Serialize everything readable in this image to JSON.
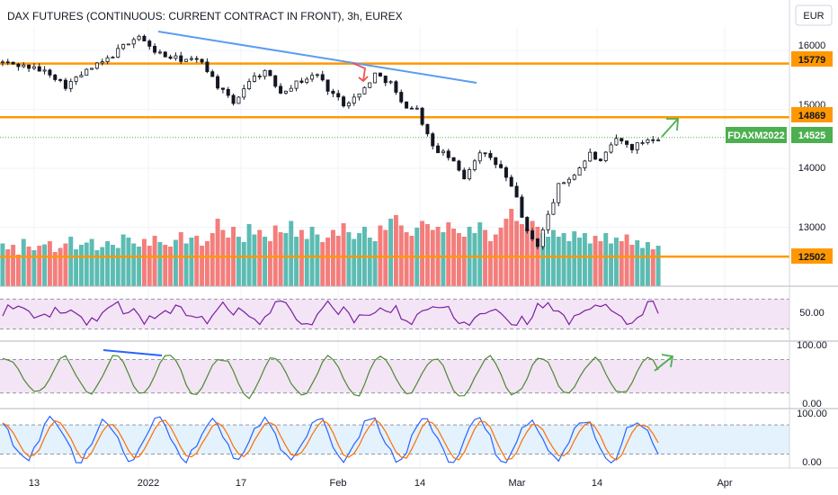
{
  "chart_data": {
    "type": "candlestick",
    "title": "DAX FUTURES (CONTINUOUS: CURRENT CONTRACT IN FRONT), 3h, EUREX",
    "currency": "EUR",
    "symbol": "FDAXM2022",
    "last_price": "14525",
    "colors": {
      "up": "#26a69a",
      "down": "#ef5350",
      "candle": "#131722",
      "level": "#ff9800",
      "trend": "#5b9cf2",
      "rsi": "#7b1fa2",
      "osc": "#4a8a2e",
      "stoch_k": "#2962ff",
      "stoch_d": "#ff6d00",
      "rsi_band": "#f3e5f5",
      "stoch_band": "#e3f2fd"
    },
    "y_ticks": [
      "16000",
      "15000",
      "14000",
      "13000"
    ],
    "ylim": [
      12000,
      16400
    ],
    "levels": [
      {
        "label": "15779",
        "value": 15779
      },
      {
        "label": "14869",
        "value": 14869
      },
      {
        "label": "12502",
        "value": 12502
      }
    ],
    "x_tick_labels": [
      "13",
      "2022",
      "17",
      "Feb",
      "14",
      "Mar",
      "14",
      "Apr"
    ],
    "price_path": [
      [
        0,
        15800
      ],
      [
        5,
        15720
      ],
      [
        9,
        15620
      ],
      [
        12,
        15400
      ],
      [
        16,
        15650
      ],
      [
        20,
        15850
      ],
      [
        24,
        16150
      ],
      [
        26,
        16250
      ],
      [
        28,
        16050
      ],
      [
        31,
        15900
      ],
      [
        34,
        15850
      ],
      [
        38,
        15820
      ],
      [
        41,
        15400
      ],
      [
        44,
        15100
      ],
      [
        47,
        15500
      ],
      [
        50,
        15650
      ],
      [
        53,
        15300
      ],
      [
        56,
        15450
      ],
      [
        60,
        15600
      ],
      [
        62,
        15350
      ],
      [
        65,
        15100
      ],
      [
        68,
        15250
      ],
      [
        71,
        15600
      ],
      [
        74,
        15450
      ],
      [
        76,
        15100
      ],
      [
        79,
        15000
      ],
      [
        82,
        14350
      ],
      [
        85,
        14200
      ],
      [
        88,
        13850
      ],
      [
        91,
        14300
      ],
      [
        95,
        14000
      ],
      [
        98,
        13500
      ],
      [
        100,
        12900
      ],
      [
        102,
        12700
      ],
      [
        104,
        13200
      ],
      [
        106,
        13700
      ],
      [
        109,
        13900
      ],
      [
        112,
        14250
      ],
      [
        114,
        14100
      ],
      [
        117,
        14500
      ],
      [
        120,
        14350
      ],
      [
        123,
        14500
      ],
      [
        125,
        14525
      ]
    ],
    "volume": [
      95,
      82,
      92,
      70,
      105,
      88,
      80,
      90,
      93,
      100,
      76,
      85,
      95,
      110,
      82,
      92,
      97,
      105,
      80,
      87,
      100,
      92,
      85,
      115,
      108,
      95,
      88,
      105,
      90,
      112,
      98,
      92,
      88,
      103,
      120,
      95,
      108,
      112,
      90,
      100,
      118,
      150,
      125,
      108,
      132,
      110,
      98,
      138,
      115,
      125,
      110,
      100,
      135,
      120,
      118,
      145,
      110,
      125,
      105,
      132,
      115,
      98,
      108,
      125,
      112,
      140,
      120,
      105,
      118,
      132,
      108,
      100,
      135,
      125,
      150,
      158,
      135,
      120,
      112,
      130,
      145,
      138,
      125,
      132,
      120,
      142,
      128,
      118,
      110,
      132,
      118,
      142,
      125,
      100,
      115,
      130,
      150,
      172,
      145,
      138,
      128,
      145,
      132,
      118,
      110,
      125,
      110,
      118,
      100,
      122,
      108,
      118,
      95,
      112,
      100,
      118,
      95,
      108,
      100,
      115,
      92,
      102,
      85,
      98,
      82,
      90
    ],
    "volume_max": 180,
    "rsi": {
      "label": "50.00",
      "band": [
        30,
        70
      ],
      "ylim": [
        15,
        85
      ]
    },
    "oscillator": {
      "ticks": [
        "100.00",
        "0.00"
      ],
      "band": [
        20,
        80
      ],
      "ylim": [
        -5,
        110
      ]
    },
    "stochastic": {
      "ticks": [
        "100.00",
        "0.00"
      ],
      "band": [
        20,
        80
      ],
      "ylim": [
        -5,
        110
      ]
    }
  }
}
